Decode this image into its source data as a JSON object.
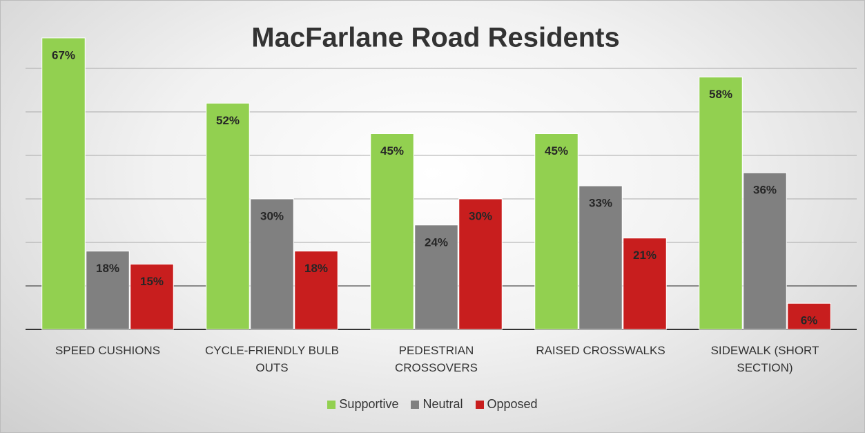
{
  "chart_data": {
    "type": "bar",
    "title": "MacFarlane Road Residents",
    "categories": [
      "SPEED CUSHIONS",
      "CYCLE-FRIENDLY BULB OUTS",
      "PEDESTRIAN CROSSOVERS",
      "RAISED CROSSWALKS",
      "SIDEWALK (SHORT SECTION)"
    ],
    "series": [
      {
        "name": "Supportive",
        "color": "#92d050",
        "values": [
          67,
          52,
          45,
          45,
          58
        ],
        "value_labels": [
          "67%",
          "52%",
          "45%",
          "45%",
          "58%"
        ]
      },
      {
        "name": "Neutral",
        "color": "#808080",
        "values": [
          18,
          30,
          24,
          33,
          36
        ],
        "value_labels": [
          "18%",
          "30%",
          "24%",
          "33%",
          "36%"
        ]
      },
      {
        "name": "Opposed",
        "color": "#c81e1e",
        "values": [
          15,
          18,
          30,
          21,
          6
        ],
        "value_labels": [
          "15%",
          "18%",
          "30%",
          "21%",
          "6%"
        ]
      }
    ],
    "ylim": [
      0,
      70
    ],
    "yticks": [
      0,
      10,
      20,
      30,
      40,
      50,
      60
    ],
    "grid": true,
    "legend": "bottom"
  }
}
